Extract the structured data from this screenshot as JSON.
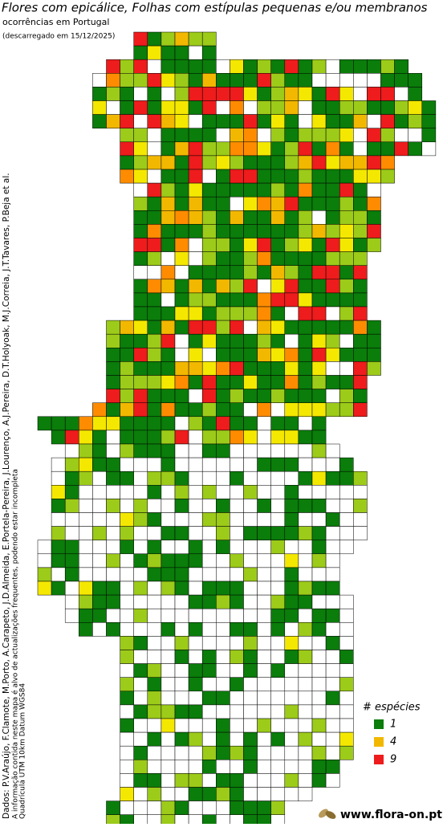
{
  "header": {
    "title": "Flores com epicálice, Folhas com estípulas pequenas e/ou membranos",
    "subtitle": "ocorrências em Portugal",
    "download_note": "(descarregado em 15/12/2025)"
  },
  "credits": [
    "Dados: P.V.Araújo, F.Clamote, M.Porto, A.Carapeto, J.D.Almeida, E.Portela-Pereira, J.Lourenço, A.J.Pereira, D.T.Holyoak, M.J.Correia, J.T.Tavares, P.Beja et al.",
    "A informação contida neste mapa é alvo de actualizações frequentes, podendo estar incompleta",
    "Quadrícula UTM 10km Datum WGS84"
  ],
  "legend": {
    "title": "# espécies",
    "items": [
      {
        "value": 1,
        "color": "#0a7d0a"
      },
      {
        "value": 4,
        "color": "#f2b800"
      },
      {
        "value": 9,
        "color": "#ee1c1c"
      }
    ]
  },
  "footer": {
    "site": "www.flora-on.pt"
  }
}
